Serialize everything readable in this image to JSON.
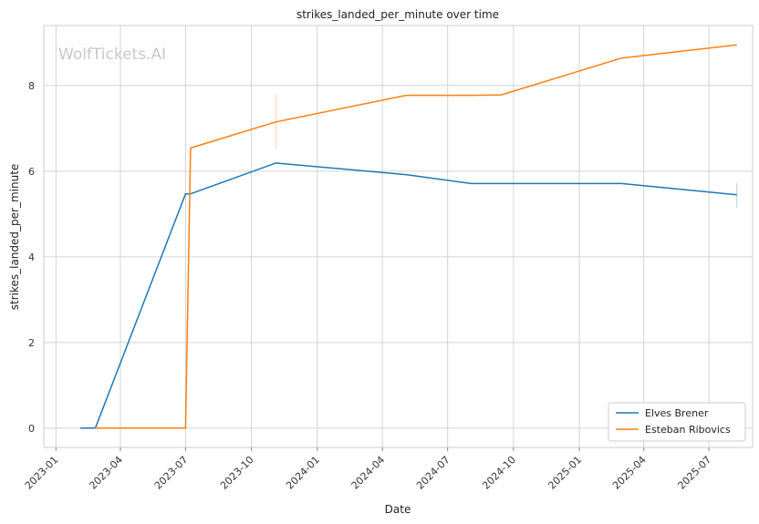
{
  "chart_data": {
    "type": "line",
    "title": "strikes_landed_per_minute over time",
    "xlabel": "Date",
    "ylabel": "strikes_landed_per_minute",
    "watermark": "WolfTickets.AI",
    "xlim": [
      "2022-12-15",
      "2025-08-31"
    ],
    "ylim": [
      -0.45,
      9.4
    ],
    "x_ticks": [
      "2023-01",
      "2023-04",
      "2023-07",
      "2023-10",
      "2024-01",
      "2024-04",
      "2024-07",
      "2024-10",
      "2025-01",
      "2025-04",
      "2025-07"
    ],
    "y_ticks": [
      0,
      2,
      4,
      6,
      8
    ],
    "grid": true,
    "legend_position": "lower-right",
    "series": [
      {
        "name": "Elves Brener",
        "color": "#1f77b4",
        "x": [
          "2023-02-04",
          "2023-02-25",
          "2023-07-01",
          "2023-07-08",
          "2023-11-04",
          "2024-05-04",
          "2024-08-03",
          "2025-03-01",
          "2025-08-09"
        ],
        "y": [
          0,
          0,
          5.47,
          5.47,
          6.19,
          5.92,
          5.71,
          5.71,
          5.45
        ],
        "error_bars": [
          {
            "x": "2025-08-09",
            "low": 5.15,
            "high": 5.72
          }
        ]
      },
      {
        "name": "Esteban Ribovics",
        "color": "#ff7f0e",
        "x": [
          "2023-02-25",
          "2023-07-01",
          "2023-07-08",
          "2023-11-04",
          "2024-05-04",
          "2024-08-03",
          "2024-09-14",
          "2025-03-01",
          "2025-08-09"
        ],
        "y": [
          0,
          0,
          6.54,
          7.15,
          7.77,
          7.77,
          7.78,
          8.64,
          8.95
        ],
        "error_bars": [
          {
            "x": "2023-11-04",
            "low": 6.5,
            "high": 7.8
          }
        ]
      }
    ]
  }
}
